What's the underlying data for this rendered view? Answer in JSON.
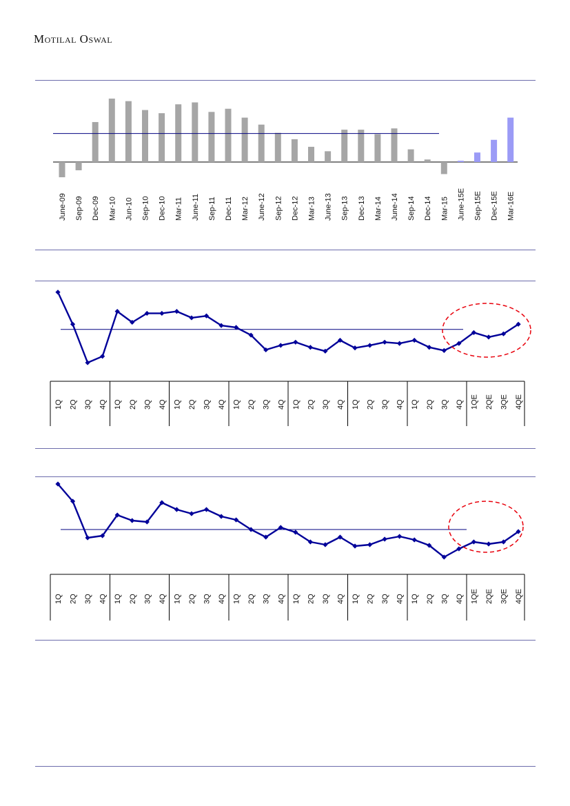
{
  "header": {
    "brand": "Motilal Oswal"
  },
  "chart_data": [
    {
      "type": "bar",
      "categories": [
        "June-09",
        "Sep-09",
        "Dec-09",
        "Mar-10",
        "Jun-10",
        "Sep-10",
        "Dec-10",
        "Mar-11",
        "June-11",
        "Sep-11",
        "Dec-11",
        "Mar-12",
        "June-12",
        "Sep-12",
        "Dec-12",
        "Mar-13",
        "June-13",
        "Sep-13",
        "Dec-13",
        "Mar-14",
        "June-14",
        "Sep-14",
        "Dec-14",
        "Mar-15",
        "June-15E",
        "Sep-15E",
        "Dec-15E",
        "Mar-16E"
      ],
      "values": [
        -2.4,
        -1.3,
        6.3,
        10.0,
        9.6,
        8.2,
        7.7,
        9.1,
        9.4,
        7.9,
        8.4,
        7.0,
        5.9,
        4.6,
        3.6,
        2.4,
        1.7,
        5.1,
        5.1,
        4.4,
        5.3,
        2.0,
        0.4,
        -1.9,
        0.2,
        1.5,
        3.5,
        7.0
      ],
      "estimate_from_index": 24,
      "average": 4.5,
      "colors": {
        "actual": "#a6a6a6",
        "estimate": "#9b9bf6"
      }
    },
    {
      "type": "line",
      "categories": [
        "1Q",
        "2Q",
        "3Q",
        "4Q",
        "1Q",
        "2Q",
        "3Q",
        "4Q",
        "1Q",
        "2Q",
        "3Q",
        "4Q",
        "1Q",
        "2Q",
        "3Q",
        "4Q",
        "1Q",
        "2Q",
        "3Q",
        "4Q",
        "1Q",
        "2Q",
        "3Q",
        "4Q",
        "1Q",
        "2Q",
        "3Q",
        "4Q",
        "1QE",
        "2QE",
        "3QE",
        "4QE"
      ],
      "values": [
        12.5,
        7.5,
        1.5,
        2.5,
        9.5,
        7.8,
        9.2,
        9.2,
        9.5,
        8.5,
        8.8,
        7.3,
        7.0,
        5.8,
        3.5,
        4.2,
        4.7,
        3.9,
        3.3,
        5.0,
        3.8,
        4.2,
        4.7,
        4.5,
        5.0,
        3.9,
        3.4,
        4.5,
        6.2,
        5.5,
        6.0,
        7.5
      ],
      "average": 6.7,
      "color": "#000099",
      "highlight_from_index": 28,
      "highlight_color": "#e8000b"
    },
    {
      "type": "line",
      "categories": [
        "1Q",
        "2Q",
        "3Q",
        "4Q",
        "1Q",
        "2Q",
        "3Q",
        "4Q",
        "1Q",
        "2Q",
        "3Q",
        "4Q",
        "1Q",
        "2Q",
        "3Q",
        "4Q",
        "1Q",
        "2Q",
        "3Q",
        "4Q",
        "1Q",
        "2Q",
        "3Q",
        "4Q",
        "1Q",
        "2Q",
        "3Q",
        "4Q",
        "1QE",
        "2QE",
        "3QE",
        "4QE"
      ],
      "values": [
        13.0,
        10.5,
        5.2,
        5.5,
        8.5,
        7.7,
        7.5,
        10.3,
        9.3,
        8.7,
        9.3,
        8.3,
        7.8,
        6.4,
        5.3,
        6.7,
        6.0,
        4.6,
        4.2,
        5.3,
        4.0,
        4.2,
        5.0,
        5.4,
        4.9,
        4.1,
        2.4,
        3.6,
        4.6,
        4.3,
        4.6,
        6.1
      ],
      "average": 6.4,
      "color": "#000099",
      "highlight_from_index": 28,
      "highlight_color": "#e8000b"
    }
  ]
}
